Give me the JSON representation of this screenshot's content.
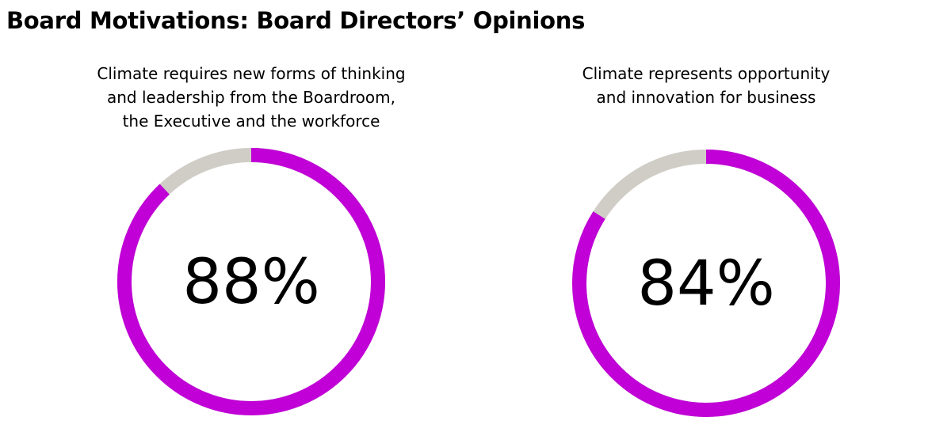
{
  "header": {
    "title": "Board Motivations: Board Directors’ Opinions"
  },
  "colors": {
    "accent": "#c000d6",
    "remainder": "#cfcdc6",
    "text": "#000000"
  },
  "chart_data": [
    {
      "type": "pie",
      "title": "Climate requires new forms of thinking\nand leadership from the Boardroom,\nthe Executive and the workforce",
      "value": 88,
      "value_label": "88%",
      "max": 100
    },
    {
      "type": "pie",
      "title": "Climate represents opportunity\nand innovation for business",
      "value": 84,
      "value_label": "84%",
      "max": 100
    }
  ]
}
